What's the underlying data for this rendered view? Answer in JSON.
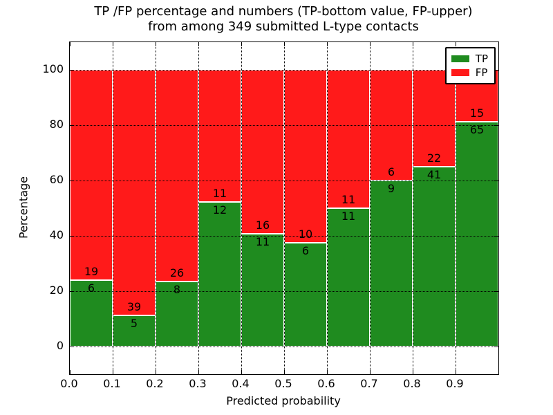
{
  "title": {
    "line1": "TP /FP percentage and numbers (TP-bottom value, FP-upper)",
    "line2": "from among 349 submitted L-type contacts"
  },
  "chart_data": {
    "type": "bar",
    "stacked": true,
    "normalized_to_percent": true,
    "title": "TP /FP percentage and numbers (TP-bottom value, FP-upper) from among 349 submitted L-type contacts",
    "xlabel": "Predicted probability",
    "ylabel": "Percentage",
    "total_contacts": 349,
    "bin_edges": [
      0.0,
      0.1,
      0.2,
      0.3,
      0.4,
      0.5,
      0.6,
      0.7,
      0.8,
      0.9,
      1.0
    ],
    "x_tick_labels": [
      "0.0",
      "0.1",
      "0.2",
      "0.3",
      "0.4",
      "0.5",
      "0.6",
      "0.7",
      "0.8",
      "0.9"
    ],
    "y_tick_values": [
      0,
      20,
      40,
      60,
      80,
      100
    ],
    "xlim": [
      0.0,
      1.0
    ],
    "ylim": [
      -10,
      110
    ],
    "series": [
      {
        "name": "TP",
        "color": "#1f8b1f",
        "counts": [
          6,
          5,
          8,
          12,
          11,
          6,
          11,
          9,
          41,
          65
        ]
      },
      {
        "name": "FP",
        "color": "#ff1a1a",
        "counts": [
          19,
          39,
          26,
          11,
          16,
          10,
          11,
          6,
          22,
          15
        ]
      }
    ],
    "tp_percent": [
      24.0,
      11.4,
      23.5,
      52.2,
      40.7,
      37.5,
      50.0,
      60.0,
      65.1,
      81.2
    ],
    "grid": {
      "visible": true,
      "style": "dotted",
      "color": "#000000"
    },
    "legend": {
      "position": "upper right",
      "entries": [
        {
          "label": "TP",
          "color": "#1f8b1f"
        },
        {
          "label": "FP",
          "color": "#ff1a1a"
        }
      ]
    }
  },
  "colors": {
    "tp_green": "#1f8b1f",
    "fp_red": "#ff1a1a",
    "background": "#ffffff",
    "text": "#000000",
    "bar_edge": "#ffffff"
  }
}
